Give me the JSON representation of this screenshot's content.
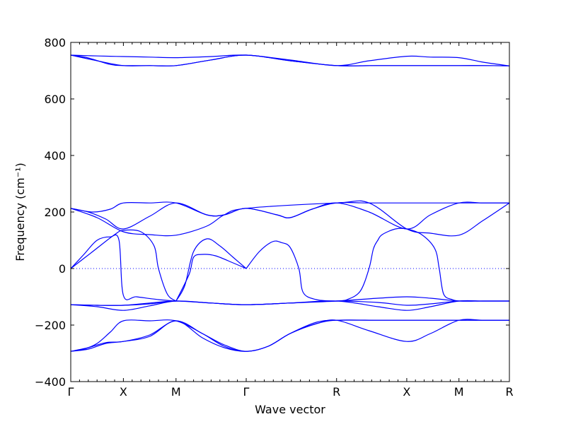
{
  "chart_data": {
    "type": "line",
    "xlabel": "Wave vector",
    "ylabel": "Frequency (cm⁻¹)",
    "ylim": [
      -400,
      800
    ],
    "y_ticks": [
      -400,
      -200,
      0,
      200,
      400,
      600,
      800
    ],
    "y_tick_labels": [
      "−400",
      "−200",
      "0",
      "200",
      "400",
      "600",
      "800"
    ],
    "x_ticks": [
      0,
      0.12,
      0.24,
      0.4,
      0.606,
      0.766,
      0.885,
      1.0
    ],
    "x_tick_labels": [
      "Γ",
      "X",
      "M",
      "Γ",
      "R",
      "X",
      "M",
      "R"
    ],
    "xlim": [
      0,
      1
    ],
    "grid": false,
    "zero_line": true,
    "line_color": "#0000ff",
    "zero_line_color": "#0000ff",
    "series": [
      {
        "x": [
          0,
          0.04,
          0.09,
          0.12,
          0.18,
          0.24,
          0.32,
          0.4,
          0.5,
          0.606,
          0.68,
          0.766,
          0.82,
          0.885,
          0.94,
          1.0
        ],
        "y": [
          755,
          753,
          751,
          750,
          748,
          746,
          750,
          755,
          738,
          718,
          735,
          751,
          748,
          746,
          730,
          717
        ]
      },
      {
        "x": [
          0,
          0.04,
          0.09,
          0.12,
          0.18,
          0.24,
          0.32,
          0.4,
          0.5,
          0.606,
          0.68,
          0.766,
          0.82,
          0.885,
          0.94,
          1.0
        ],
        "y": [
          755,
          745,
          722,
          718,
          718,
          718,
          738,
          755,
          735,
          718,
          718,
          718,
          718,
          718,
          718,
          717
        ]
      },
      {
        "x": [
          0,
          0.06,
          0.12,
          0.18,
          0.24,
          0.32,
          0.4,
          0.5,
          0.606,
          0.7,
          0.766,
          0.82,
          0.885,
          0.94,
          1.0
        ],
        "y": [
          755,
          735,
          718,
          718,
          718,
          738,
          755,
          735,
          718,
          718,
          718,
          718,
          718,
          718,
          717
        ]
      },
      {
        "x": [
          0,
          0.05,
          0.09,
          0.12,
          0.18,
          0.24,
          0.31,
          0.35,
          0.4,
          0.47,
          0.5,
          0.55,
          0.606,
          0.68,
          0.766,
          0.82,
          0.885,
          0.94,
          1.0
        ],
        "y": [
          213,
          200,
          210,
          232,
          232,
          232,
          190,
          190,
          213,
          190,
          180,
          210,
          232,
          232,
          232,
          232,
          232,
          232,
          232
        ]
      },
      {
        "x": [
          0,
          0.04,
          0.08,
          0.12,
          0.18,
          0.24,
          0.31,
          0.35,
          0.4,
          0.47,
          0.5,
          0.55,
          0.606,
          0.68,
          0.766,
          0.82,
          0.885,
          0.94,
          1.0
        ],
        "y": [
          213,
          200,
          175,
          140,
          185,
          232,
          190,
          190,
          213,
          190,
          180,
          210,
          232,
          200,
          140,
          190,
          232,
          232,
          232
        ]
      },
      {
        "x": [
          0,
          0.06,
          0.12,
          0.18,
          0.24,
          0.31,
          0.35,
          0.4,
          0.606,
          0.68,
          0.766,
          0.82,
          0.885,
          0.94,
          1.0
        ],
        "y": [
          213,
          180,
          130,
          120,
          118,
          150,
          190,
          213,
          232,
          232,
          140,
          125,
          118,
          170,
          232
        ]
      },
      {
        "x": [
          0,
          0.03,
          0.06,
          0.09,
          0.11,
          0.12,
          0.15,
          0.2,
          0.24
        ],
        "y": [
          0,
          50,
          100,
          112,
          100,
          -95,
          -100,
          -110,
          -115
        ]
      },
      {
        "x": [
          0,
          0.05,
          0.1,
          0.12,
          0.16,
          0.19,
          0.2,
          0.22,
          0.24
        ],
        "y": [
          0,
          60,
          120,
          135,
          130,
          80,
          0,
          -90,
          -115
        ]
      },
      {
        "x": [
          0.24,
          0.26,
          0.28,
          0.31,
          0.34,
          0.37,
          0.4
        ],
        "y": [
          -115,
          -60,
          60,
          105,
          80,
          40,
          0
        ]
      },
      {
        "x": [
          0.24,
          0.27,
          0.28,
          0.3,
          0.33,
          0.37,
          0.4
        ],
        "y": [
          -115,
          -20,
          40,
          50,
          45,
          20,
          0
        ]
      },
      {
        "x": [
          0.4,
          0.43,
          0.46,
          0.48,
          0.5,
          0.52,
          0.53,
          0.56,
          0.6,
          0.606
        ],
        "y": [
          0,
          60,
          95,
          92,
          75,
          0,
          -85,
          -110,
          -115,
          -115
        ]
      },
      {
        "x": [
          0.606,
          0.63,
          0.66,
          0.68,
          0.69,
          0.7,
          0.71,
          0.74,
          0.766,
          0.8,
          0.83,
          0.84,
          0.85,
          0.87,
          0.885
        ],
        "y": [
          -115,
          -110,
          -80,
          0,
          70,
          100,
          120,
          140,
          140,
          120,
          70,
          0,
          -90,
          -110,
          -115
        ]
      },
      {
        "x": [
          0,
          0.06,
          0.12,
          0.18,
          0.24,
          0.32,
          0.4,
          0.5,
          0.606,
          0.7,
          0.766,
          0.82,
          0.885,
          0.94,
          1.0
        ],
        "y": [
          -128,
          -130,
          -130,
          -125,
          -115,
          -122,
          -128,
          -122,
          -115,
          -105,
          -100,
          -105,
          -115,
          -115,
          -115
        ]
      },
      {
        "x": [
          0,
          0.06,
          0.12,
          0.18,
          0.24,
          0.32,
          0.4,
          0.5,
          0.606,
          0.7,
          0.766,
          0.82,
          0.885,
          0.94,
          1.0
        ],
        "y": [
          -128,
          -135,
          -148,
          -132,
          -115,
          -122,
          -128,
          -122,
          -115,
          -135,
          -148,
          -135,
          -115,
          -115,
          -115
        ]
      },
      {
        "x": [
          0,
          0.06,
          0.12,
          0.18,
          0.24,
          0.32,
          0.4,
          0.5,
          0.606,
          0.7,
          0.766,
          0.82,
          0.885,
          0.94,
          1.0
        ],
        "y": [
          -128,
          -130,
          -130,
          -122,
          -115,
          -122,
          -128,
          -122,
          -115,
          -120,
          -130,
          -125,
          -115,
          -115,
          -115
        ]
      },
      {
        "x": [
          0,
          0.03,
          0.06,
          0.09,
          0.12,
          0.18,
          0.24,
          0.3,
          0.35,
          0.4,
          0.45,
          0.5,
          0.56,
          0.606,
          0.68,
          0.766,
          0.82,
          0.885,
          0.94,
          1.0
        ],
        "y": [
          -293,
          -285,
          -265,
          -225,
          -185,
          -185,
          -185,
          -230,
          -275,
          -293,
          -275,
          -230,
          -190,
          -183,
          -183,
          -183,
          -183,
          -183,
          -183,
          -183
        ]
      },
      {
        "x": [
          0,
          0.04,
          0.08,
          0.12,
          0.18,
          0.24,
          0.3,
          0.35,
          0.4,
          0.45,
          0.5,
          0.56,
          0.606,
          0.68,
          0.766,
          0.82,
          0.885,
          0.94,
          1.0
        ],
        "y": [
          -293,
          -285,
          -265,
          -258,
          -240,
          -185,
          -245,
          -280,
          -293,
          -275,
          -230,
          -195,
          -183,
          -220,
          -258,
          -230,
          -183,
          -183,
          -183
        ]
      },
      {
        "x": [
          0,
          0.04,
          0.08,
          0.12,
          0.18,
          0.24,
          0.3,
          0.35,
          0.4,
          0.45,
          0.5,
          0.56,
          0.606,
          0.7,
          0.766,
          0.82,
          0.885,
          0.94,
          1.0
        ],
        "y": [
          -293,
          -280,
          -262,
          -258,
          -235,
          -185,
          -230,
          -270,
          -293,
          -275,
          -230,
          -195,
          -183,
          -183,
          -183,
          -183,
          -183,
          -183,
          -183
        ]
      }
    ]
  }
}
